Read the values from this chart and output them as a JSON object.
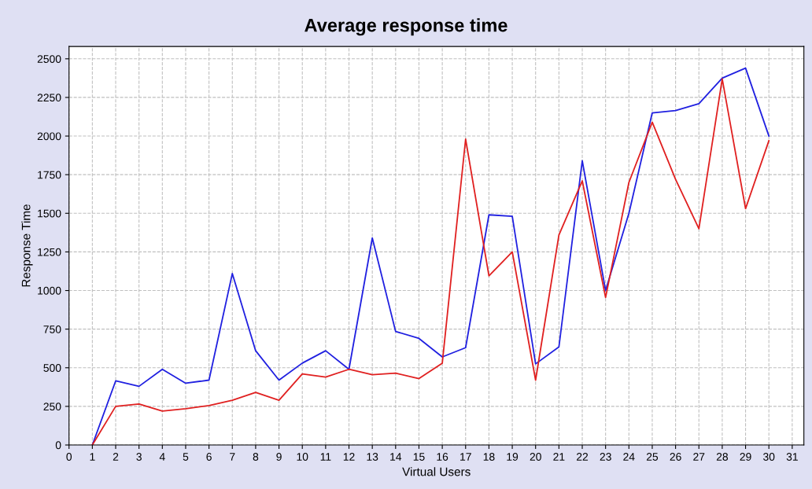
{
  "chart_data": {
    "type": "line",
    "title": "Average response time",
    "xlabel": "Virtual Users",
    "ylabel": "Response Time",
    "x": [
      1,
      2,
      3,
      4,
      5,
      6,
      7,
      8,
      9,
      10,
      11,
      12,
      13,
      14,
      15,
      16,
      17,
      18,
      19,
      20,
      21,
      22,
      23,
      24,
      25,
      26,
      27,
      28,
      29,
      30
    ],
    "series": [
      {
        "color": "#2020e0",
        "values": [
          0,
          415,
          380,
          490,
          400,
          420,
          1110,
          610,
          420,
          530,
          610,
          490,
          1340,
          735,
          690,
          570,
          630,
          1490,
          1480,
          525,
          635,
          1840,
          1000,
          1500,
          2150,
          2165,
          2210,
          2375,
          2440,
          2000
        ]
      },
      {
        "color": "#e02020",
        "values": [
          0,
          250,
          265,
          220,
          235,
          255,
          290,
          340,
          290,
          460,
          440,
          490,
          455,
          465,
          430,
          530,
          1980,
          1095,
          1250,
          420,
          1360,
          1710,
          955,
          1700,
          2090,
          1720,
          1400,
          2370,
          1530,
          1970
        ]
      }
    ],
    "xlim": [
      0,
      31.5
    ],
    "xticks": [
      0,
      1,
      2,
      3,
      4,
      5,
      6,
      7,
      8,
      9,
      10,
      11,
      12,
      13,
      14,
      15,
      16,
      17,
      18,
      19,
      20,
      21,
      22,
      23,
      24,
      25,
      26,
      27,
      28,
      29,
      30,
      31
    ],
    "ylim": [
      0,
      2580
    ],
    "yticks": [
      0,
      250,
      500,
      750,
      1000,
      1250,
      1500,
      1750,
      2000,
      2250,
      2500
    ],
    "grid": true,
    "line_style": "solid",
    "marker": "none"
  }
}
